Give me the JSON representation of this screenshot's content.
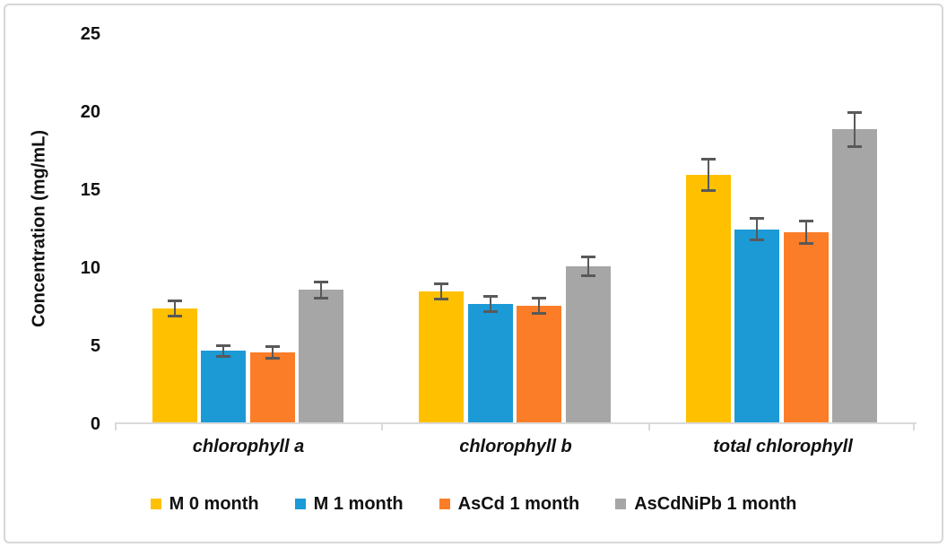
{
  "figure": {
    "background": "#ffffff",
    "border_color": "#d7d7d7"
  },
  "chart_data": {
    "type": "bar",
    "title": "",
    "xlabel": "",
    "ylabel": "Concentration (mg/mL)",
    "ylim": [
      0,
      25
    ],
    "y_ticks": [
      "0",
      "5",
      "10",
      "15",
      "20",
      "25"
    ],
    "grid": false,
    "legend_position": "bottom",
    "categories": [
      "chlorophyll a",
      "chlorophyll b",
      "total chlorophyll"
    ],
    "series": [
      {
        "name": "M 0 month",
        "color": "#FFC000",
        "values": [
          7.4,
          8.5,
          16.0
        ],
        "errors": [
          0.5,
          0.5,
          1.0
        ]
      },
      {
        "name": "M 1 month",
        "color": "#1B9AD6",
        "values": [
          4.7,
          7.7,
          12.5
        ],
        "errors": [
          0.35,
          0.5,
          0.7
        ]
      },
      {
        "name": "AsCd 1 month",
        "color": "#FB7D28",
        "values": [
          4.6,
          7.6,
          12.3
        ],
        "errors": [
          0.35,
          0.5,
          0.7
        ]
      },
      {
        "name": "AsCdNiPb 1 month",
        "color": "#A6A6A6",
        "values": [
          8.6,
          10.1,
          18.9
        ],
        "errors": [
          0.5,
          0.6,
          1.1
        ]
      }
    ],
    "error_bar_color": "#595959",
    "axis_line_color": "#D9D9D9",
    "text_color": "#111111"
  }
}
